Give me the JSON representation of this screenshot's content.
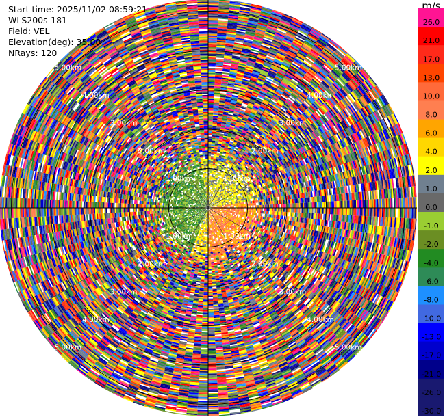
{
  "info": {
    "start_time": "Start time: 2025/11/02 08:59:21",
    "instrument": "WLS200s-181",
    "field": "Field: VEL",
    "elevation": "Elevation(deg): 35.00",
    "nrays": "NRays: 120"
  },
  "colorbar": {
    "unit": "m/s",
    "levels": [
      {
        "label": "26.0",
        "color": "#ff1493"
      },
      {
        "label": "21.0",
        "color": "#ff0000"
      },
      {
        "label": "17.0",
        "color": "#ff2a1a"
      },
      {
        "label": "13.0",
        "color": "#ff4500"
      },
      {
        "label": "10.0",
        "color": "#ff6a3a"
      },
      {
        "label": "8.0",
        "color": "#ff7f50"
      },
      {
        "label": "6.0",
        "color": "#ffa500"
      },
      {
        "label": "4.0",
        "color": "#ffd700"
      },
      {
        "label": "2.0",
        "color": "#ffff00"
      },
      {
        "label": "1.0",
        "color": "#708090"
      },
      {
        "label": "0.0",
        "color": "#696969"
      },
      {
        "label": "-1.0",
        "color": "#9acd32"
      },
      {
        "label": "-2.0",
        "color": "#6b8e23"
      },
      {
        "label": "-4.0",
        "color": "#228b22"
      },
      {
        "label": "-6.0",
        "color": "#2e8b57"
      },
      {
        "label": "-8.0",
        "color": "#1e90ff"
      },
      {
        "label": "-10.0",
        "color": "#4169e1"
      },
      {
        "label": "-13.0",
        "color": "#0000ff"
      },
      {
        "label": "-17.0",
        "color": "#0000cd"
      },
      {
        "label": "-21.0",
        "color": "#00008b"
      },
      {
        "label": "-26.0",
        "color": "#191970"
      },
      {
        "label": "-30.0",
        "color": "#191970"
      }
    ]
  },
  "chart_data": {
    "type": "heatmap",
    "projection": "polar PPI",
    "field": "VEL",
    "unit": "m/s",
    "nrays": 120,
    "range_rings_km": [
      1,
      2,
      3,
      4,
      5
    ],
    "ring_labels": [
      "1.00km",
      "2.00km",
      "3.00km",
      "4.00km",
      "5.00km"
    ],
    "near_field": {
      "range_km": [
        0,
        1.5
      ],
      "description_sectors": [
        {
          "azimuth_deg": [
            200,
            350
          ],
          "dominant_values_ms": [
            -1.0,
            -2.0,
            -4.0
          ]
        },
        {
          "azimuth_deg": [
            350,
            80
          ],
          "dominant_values_ms": [
            2.0,
            4.0,
            0.0
          ]
        },
        {
          "azimuth_deg": [
            80,
            180
          ],
          "dominant_values_ms": [
            4.0,
            6.0,
            8.0,
            10.0
          ]
        },
        {
          "azimuth_deg": [
            180,
            200
          ],
          "dominant_values_ms": [
            2.0,
            4.0
          ]
        }
      ]
    },
    "far_field": {
      "range_km": [
        1.5,
        5.3
      ],
      "note": "noisy, all colours"
    },
    "colorbar_range": [
      -30.0,
      26.0
    ]
  }
}
